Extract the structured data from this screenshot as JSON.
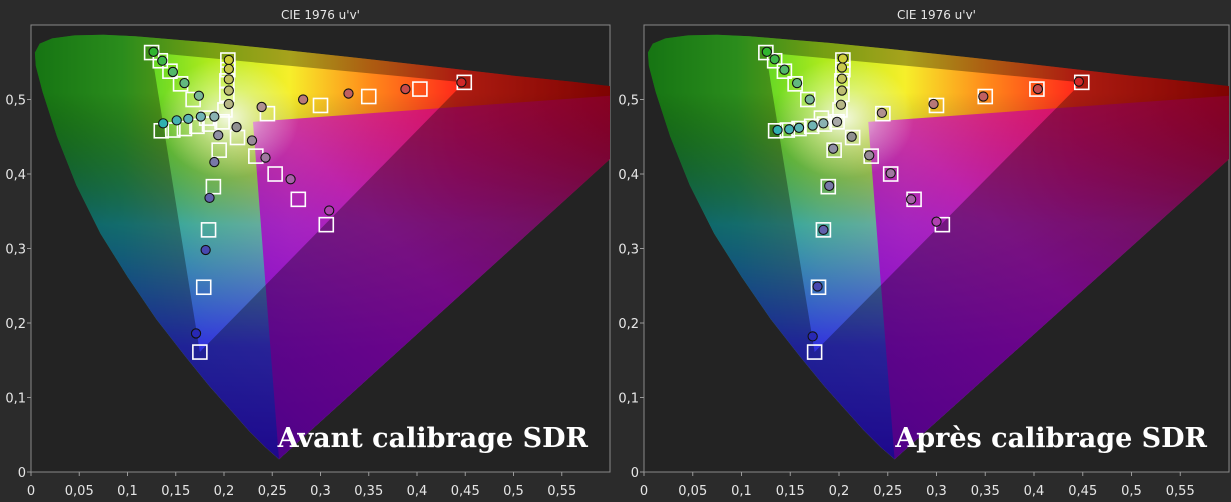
{
  "chart_data": [
    {
      "type": "scatter",
      "title": "CIE 1976 u'v'",
      "caption": "Avant calibrage SDR",
      "xlim": [
        0,
        0.6
      ],
      "ylim": [
        0,
        0.6
      ],
      "xticks": [
        "0",
        "0,05",
        "0,1",
        "0,15",
        "0,2",
        "0,25",
        "0,3",
        "0,35",
        "0,4",
        "0,45",
        "0,5",
        "0,55"
      ],
      "yticks": [
        "0",
        "0,1",
        "0,2",
        "0,3",
        "0,4",
        "0,5"
      ],
      "grid": false,
      "targets": [
        {
          "u": 0.125,
          "v": 0.563
        },
        {
          "u": 0.134,
          "v": 0.552
        },
        {
          "u": 0.144,
          "v": 0.538
        },
        {
          "u": 0.155,
          "v": 0.521
        },
        {
          "u": 0.168,
          "v": 0.5
        },
        {
          "u": 0.182,
          "v": 0.475
        },
        {
          "u": 0.198,
          "v": 0.47
        },
        {
          "u": 0.204,
          "v": 0.553
        },
        {
          "u": 0.204,
          "v": 0.54
        },
        {
          "u": 0.203,
          "v": 0.525
        },
        {
          "u": 0.203,
          "v": 0.507
        },
        {
          "u": 0.201,
          "v": 0.486
        },
        {
          "u": 0.449,
          "v": 0.523
        },
        {
          "u": 0.403,
          "v": 0.514
        },
        {
          "u": 0.35,
          "v": 0.504
        },
        {
          "u": 0.3,
          "v": 0.492
        },
        {
          "u": 0.245,
          "v": 0.481
        },
        {
          "u": 0.135,
          "v": 0.458
        },
        {
          "u": 0.147,
          "v": 0.459
        },
        {
          "u": 0.159,
          "v": 0.461
        },
        {
          "u": 0.172,
          "v": 0.464
        },
        {
          "u": 0.185,
          "v": 0.467
        },
        {
          "u": 0.306,
          "v": 0.332
        },
        {
          "u": 0.277,
          "v": 0.366
        },
        {
          "u": 0.253,
          "v": 0.4
        },
        {
          "u": 0.233,
          "v": 0.424
        },
        {
          "u": 0.214,
          "v": 0.449
        },
        {
          "u": 0.175,
          "v": 0.161
        },
        {
          "u": 0.179,
          "v": 0.248
        },
        {
          "u": 0.184,
          "v": 0.325
        },
        {
          "u": 0.189,
          "v": 0.383
        },
        {
          "u": 0.195,
          "v": 0.432
        }
      ],
      "measured": [
        {
          "u": 0.127,
          "v": 0.564,
          "color": "#2fb52f"
        },
        {
          "u": 0.136,
          "v": 0.552,
          "color": "#3fb84a"
        },
        {
          "u": 0.147,
          "v": 0.537,
          "color": "#52b868"
        },
        {
          "u": 0.159,
          "v": 0.522,
          "color": "#62b87f"
        },
        {
          "u": 0.174,
          "v": 0.505,
          "color": "#79b898"
        },
        {
          "u": 0.205,
          "v": 0.553,
          "color": "#cfcf3a"
        },
        {
          "u": 0.205,
          "v": 0.541,
          "color": "#c9c94c"
        },
        {
          "u": 0.205,
          "v": 0.527,
          "color": "#c3c35e"
        },
        {
          "u": 0.205,
          "v": 0.512,
          "color": "#bdbd72"
        },
        {
          "u": 0.205,
          "v": 0.494,
          "color": "#b6b686"
        },
        {
          "u": 0.446,
          "v": 0.523,
          "color": "#d02828"
        },
        {
          "u": 0.388,
          "v": 0.514,
          "color": "#c84a4a"
        },
        {
          "u": 0.329,
          "v": 0.508,
          "color": "#c06060"
        },
        {
          "u": 0.282,
          "v": 0.5,
          "color": "#b87878"
        },
        {
          "u": 0.239,
          "v": 0.49,
          "color": "#b09090"
        },
        {
          "u": 0.137,
          "v": 0.468,
          "color": "#2fb0b0"
        },
        {
          "u": 0.151,
          "v": 0.472,
          "color": "#45b2b2"
        },
        {
          "u": 0.163,
          "v": 0.474,
          "color": "#5ab4b4"
        },
        {
          "u": 0.176,
          "v": 0.477,
          "color": "#70b4b4"
        },
        {
          "u": 0.19,
          "v": 0.477,
          "color": "#8ab2b2"
        },
        {
          "u": 0.309,
          "v": 0.351,
          "color": "#b040b0"
        },
        {
          "u": 0.269,
          "v": 0.393,
          "color": "#a860a8"
        },
        {
          "u": 0.243,
          "v": 0.422,
          "color": "#a078a0"
        },
        {
          "u": 0.229,
          "v": 0.445,
          "color": "#988a98"
        },
        {
          "u": 0.213,
          "v": 0.463,
          "color": "#909090"
        },
        {
          "u": 0.171,
          "v": 0.186,
          "color": "#2828b4"
        },
        {
          "u": 0.181,
          "v": 0.298,
          "color": "#4848b0"
        },
        {
          "u": 0.185,
          "v": 0.368,
          "color": "#6060ac"
        },
        {
          "u": 0.19,
          "v": 0.416,
          "color": "#7878a8"
        },
        {
          "u": 0.194,
          "v": 0.452,
          "color": "#9090a4"
        }
      ]
    },
    {
      "type": "scatter",
      "title": "CIE 1976 u'v'",
      "caption": "Après calibrage SDR",
      "xlim": [
        0,
        0.6
      ],
      "ylim": [
        0,
        0.6
      ],
      "xticks": [
        "0",
        "0,05",
        "0,1",
        "0,15",
        "0,2",
        "0,25",
        "0,3",
        "0,35",
        "0,4",
        "0,45",
        "0,5",
        "0,55"
      ],
      "yticks": [
        "0",
        "0,1",
        "0,2",
        "0,3",
        "0,4",
        "0,5"
      ],
      "grid": false,
      "targets": [
        {
          "u": 0.125,
          "v": 0.563
        },
        {
          "u": 0.134,
          "v": 0.552
        },
        {
          "u": 0.144,
          "v": 0.538
        },
        {
          "u": 0.155,
          "v": 0.521
        },
        {
          "u": 0.168,
          "v": 0.5
        },
        {
          "u": 0.182,
          "v": 0.475
        },
        {
          "u": 0.198,
          "v": 0.47
        },
        {
          "u": 0.204,
          "v": 0.553
        },
        {
          "u": 0.204,
          "v": 0.54
        },
        {
          "u": 0.203,
          "v": 0.525
        },
        {
          "u": 0.203,
          "v": 0.507
        },
        {
          "u": 0.201,
          "v": 0.486
        },
        {
          "u": 0.449,
          "v": 0.523
        },
        {
          "u": 0.403,
          "v": 0.514
        },
        {
          "u": 0.35,
          "v": 0.504
        },
        {
          "u": 0.3,
          "v": 0.492
        },
        {
          "u": 0.245,
          "v": 0.481
        },
        {
          "u": 0.135,
          "v": 0.458
        },
        {
          "u": 0.147,
          "v": 0.459
        },
        {
          "u": 0.159,
          "v": 0.461
        },
        {
          "u": 0.172,
          "v": 0.464
        },
        {
          "u": 0.185,
          "v": 0.467
        },
        {
          "u": 0.306,
          "v": 0.332
        },
        {
          "u": 0.277,
          "v": 0.366
        },
        {
          "u": 0.253,
          "v": 0.4
        },
        {
          "u": 0.233,
          "v": 0.424
        },
        {
          "u": 0.214,
          "v": 0.449
        },
        {
          "u": 0.175,
          "v": 0.161
        },
        {
          "u": 0.179,
          "v": 0.248
        },
        {
          "u": 0.184,
          "v": 0.325
        },
        {
          "u": 0.189,
          "v": 0.383
        },
        {
          "u": 0.195,
          "v": 0.432
        }
      ],
      "measured": [
        {
          "u": 0.126,
          "v": 0.564,
          "color": "#2fb52f"
        },
        {
          "u": 0.134,
          "v": 0.554,
          "color": "#3fb84a"
        },
        {
          "u": 0.144,
          "v": 0.54,
          "color": "#52b868"
        },
        {
          "u": 0.157,
          "v": 0.522,
          "color": "#62b87f"
        },
        {
          "u": 0.17,
          "v": 0.5,
          "color": "#79b898"
        },
        {
          "u": 0.198,
          "v": 0.47,
          "color": "#a8a8a8"
        },
        {
          "u": 0.204,
          "v": 0.555,
          "color": "#cfcf3a"
        },
        {
          "u": 0.203,
          "v": 0.543,
          "color": "#c9c94c"
        },
        {
          "u": 0.203,
          "v": 0.528,
          "color": "#c3c35e"
        },
        {
          "u": 0.203,
          "v": 0.512,
          "color": "#bdbd72"
        },
        {
          "u": 0.202,
          "v": 0.493,
          "color": "#b6b686"
        },
        {
          "u": 0.446,
          "v": 0.524,
          "color": "#d02828"
        },
        {
          "u": 0.404,
          "v": 0.514,
          "color": "#c84a4a"
        },
        {
          "u": 0.348,
          "v": 0.504,
          "color": "#c06060"
        },
        {
          "u": 0.297,
          "v": 0.494,
          "color": "#b87878"
        },
        {
          "u": 0.244,
          "v": 0.482,
          "color": "#b09090"
        },
        {
          "u": 0.137,
          "v": 0.459,
          "color": "#2fb0b0"
        },
        {
          "u": 0.149,
          "v": 0.46,
          "color": "#45b2b2"
        },
        {
          "u": 0.159,
          "v": 0.462,
          "color": "#5ab4b4"
        },
        {
          "u": 0.173,
          "v": 0.465,
          "color": "#70b4b4"
        },
        {
          "u": 0.184,
          "v": 0.468,
          "color": "#8ab2b2"
        },
        {
          "u": 0.3,
          "v": 0.336,
          "color": "#b040b0"
        },
        {
          "u": 0.274,
          "v": 0.366,
          "color": "#a860a8"
        },
        {
          "u": 0.253,
          "v": 0.401,
          "color": "#a078a0"
        },
        {
          "u": 0.231,
          "v": 0.425,
          "color": "#988a98"
        },
        {
          "u": 0.213,
          "v": 0.45,
          "color": "#909090"
        },
        {
          "u": 0.173,
          "v": 0.182,
          "color": "#2828b4"
        },
        {
          "u": 0.178,
          "v": 0.249,
          "color": "#4848b0"
        },
        {
          "u": 0.184,
          "v": 0.325,
          "color": "#6060ac"
        },
        {
          "u": 0.19,
          "v": 0.384,
          "color": "#7878a8"
        },
        {
          "u": 0.194,
          "v": 0.434,
          "color": "#9090a4"
        }
      ]
    }
  ]
}
